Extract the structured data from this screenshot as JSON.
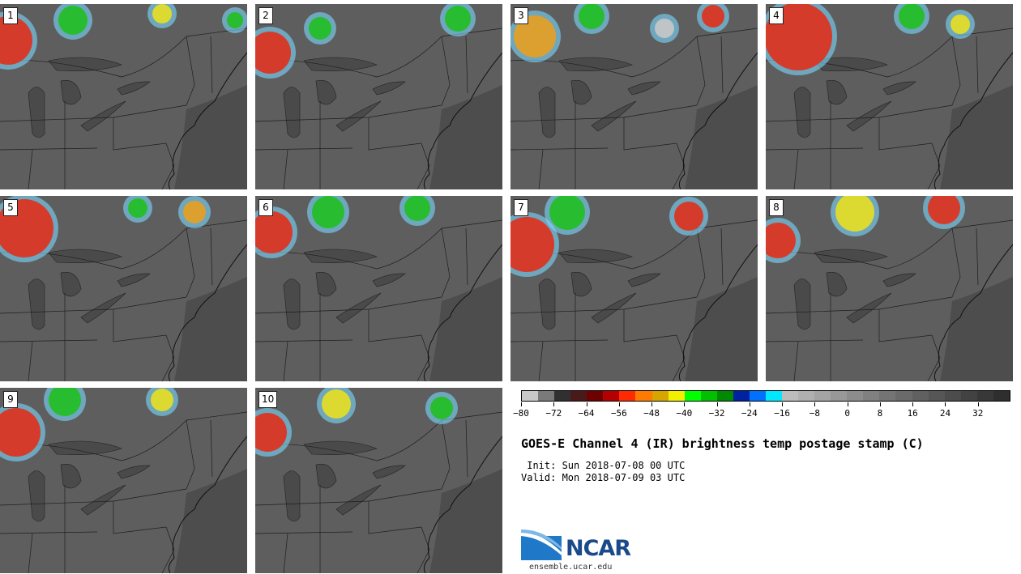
{
  "panels": [
    {
      "label": "1"
    },
    {
      "label": "2"
    },
    {
      "label": "3"
    },
    {
      "label": "4"
    },
    {
      "label": "5"
    },
    {
      "label": "6"
    },
    {
      "label": "7"
    },
    {
      "label": "8"
    },
    {
      "label": "9"
    },
    {
      "label": "10"
    }
  ],
  "colorbar": {
    "colors": [
      "#c8c8c8",
      "#7a7a7a",
      "#303030",
      "#4a1a1a",
      "#6e0000",
      "#b40000",
      "#ff2a00",
      "#ff7a00",
      "#d8a400",
      "#f0f000",
      "#00ff00",
      "#00c000",
      "#008a00",
      "#0022a0",
      "#0070ff",
      "#00e8ff",
      "#bcbcbc",
      "#b0b0b0",
      "#a4a4a4",
      "#989898",
      "#8c8c8c",
      "#808080",
      "#747474",
      "#6a6a6a",
      "#606060",
      "#565656",
      "#4c4c4c",
      "#424242",
      "#383838",
      "#2e2e2e"
    ],
    "tick_labels": [
      "−80",
      "−72",
      "−64",
      "−56",
      "−48",
      "−40",
      "−32",
      "−24",
      "−16",
      "−8",
      "0",
      "8",
      "16",
      "24",
      "32"
    ]
  },
  "title": "GOES-E Channel 4 (IR) brightness temp postage stamp (C)",
  "init_text": " Init: Sun 2018-07-08 00 UTC",
  "valid_text": "Valid: Mon 2018-07-09 03 UTC",
  "logo_text": "NCAR",
  "url": "ensemble.ucar.edu"
}
